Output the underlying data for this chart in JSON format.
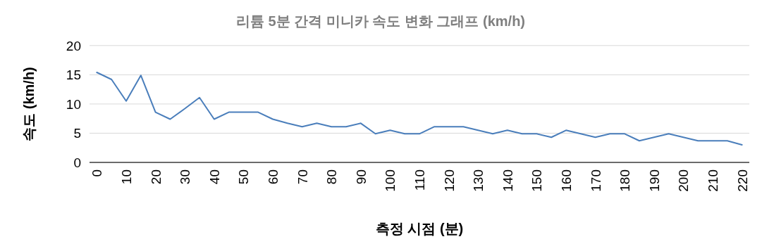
{
  "chart_data": {
    "type": "line",
    "title": "리튬 5분 간격 미니카 속도 변화 그래프 (km/h)",
    "xlabel": "측정 시점 (분)",
    "ylabel": "속도 (km/h)",
    "categories": [
      "0",
      null,
      "10",
      null,
      "20",
      null,
      "30",
      null,
      "40",
      null,
      "50",
      null,
      "60",
      null,
      "70",
      null,
      "80",
      null,
      "90",
      null,
      "100",
      null,
      "110",
      null,
      "120",
      null,
      "130",
      null,
      "140",
      null,
      "150",
      null,
      "160",
      null,
      "170",
      null,
      "180",
      null,
      "190",
      null,
      "200",
      null,
      "210",
      null,
      "220"
    ],
    "series": [
      {
        "color": "#4a7ebb",
        "values": [
          15.4,
          14.2,
          10.5,
          14.9,
          8.6,
          7.4,
          9.2,
          11.1,
          7.4,
          8.6,
          8.6,
          8.6,
          7.4,
          6.7,
          6.1,
          6.7,
          6.1,
          6.1,
          6.7,
          4.9,
          5.5,
          4.9,
          4.9,
          6.1,
          6.1,
          6.1,
          5.5,
          4.9,
          5.5,
          4.9,
          4.9,
          4.3,
          5.5,
          4.9,
          4.3,
          4.9,
          4.9,
          3.7,
          4.3,
          4.9,
          4.3,
          3.7,
          3.7,
          3.7,
          3.0
        ]
      }
    ],
    "ylim": [
      0,
      20
    ],
    "yticks": [
      0,
      5,
      10,
      15,
      20
    ],
    "grid": "y"
  }
}
